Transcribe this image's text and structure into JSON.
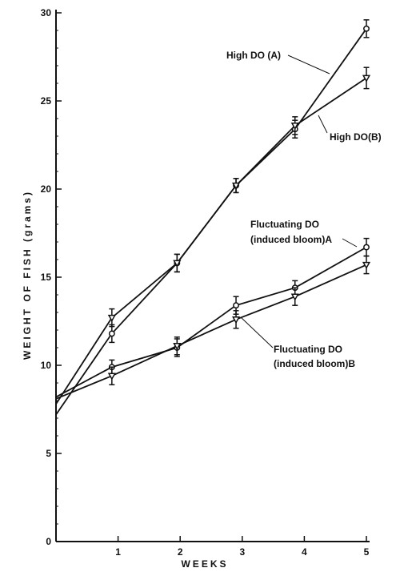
{
  "chart_data": {
    "type": "line",
    "title": "",
    "xlabel": "WEEKS",
    "ylabel": "WEIGHT OF FISH (grams)",
    "xlim": [
      0,
      5
    ],
    "ylim": [
      0,
      30
    ],
    "x_ticks": [
      1,
      2,
      3,
      4,
      5
    ],
    "y_ticks": [
      0,
      5,
      10,
      15,
      20,
      25,
      30
    ],
    "grid": false,
    "series": [
      {
        "marker": "circle",
        "x": [
          0,
          0.9,
          1.95,
          2.9,
          3.85,
          5
        ],
        "y": [
          7.2,
          11.8,
          15.8,
          20.2,
          23.4,
          29.1
        ],
        "err": [
          0,
          0.5,
          0.5,
          0.4,
          0.5,
          0.5
        ]
      },
      {
        "marker": "triangle",
        "x": [
          0,
          0.9,
          1.95,
          2.9,
          3.85,
          5
        ],
        "y": [
          7.8,
          12.7,
          15.8,
          20.2,
          23.6,
          26.3
        ],
        "err": [
          0,
          0.5,
          0.5,
          0.4,
          0.5,
          0.6
        ]
      },
      {
        "marker": "circle",
        "x": [
          0,
          0.9,
          1.95,
          2.9,
          3.85,
          5
        ],
        "y": [
          8.2,
          9.9,
          11.0,
          13.4,
          14.4,
          16.7
        ],
        "err": [
          0,
          0.4,
          0.5,
          0.5,
          0.4,
          0.5
        ]
      },
      {
        "marker": "triangle",
        "x": [
          0,
          0.9,
          1.95,
          2.9,
          3.85,
          5
        ],
        "y": [
          8.1,
          9.4,
          11.1,
          12.6,
          13.9,
          15.7
        ],
        "err": [
          0,
          0.5,
          0.5,
          0.5,
          0.5,
          0.5
        ]
      }
    ],
    "annotations": [
      {
        "text": "High DO (A)",
        "series": 0
      },
      {
        "text": "High DO(B)",
        "series": 1
      },
      {
        "text": "Fluctuating DO",
        "series": 2
      },
      {
        "text": "(induced bloom)A",
        "series": 2
      },
      {
        "text": "Fluctuating DO",
        "series": 3
      },
      {
        "text": "(induced bloom)B",
        "series": 3
      }
    ]
  }
}
